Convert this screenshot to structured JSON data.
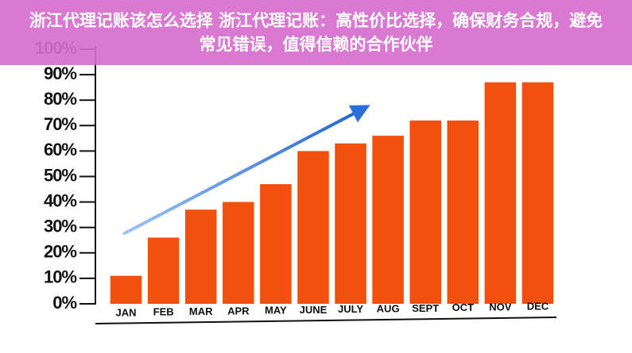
{
  "chart_data": {
    "type": "bar",
    "title": "浙江代理记账该怎么选择 浙江代理记账：高性价比选择，确保财务合规，避免常见错误，值得信赖的合作伙伴",
    "categories": [
      "JAN",
      "FEB",
      "MAR",
      "APR",
      "MAY",
      "JUNE",
      "JULY",
      "AUG",
      "SEPT",
      "OCT",
      "NOV",
      "DEC"
    ],
    "values": [
      11,
      26,
      37,
      40,
      47,
      60,
      63,
      66,
      72,
      72,
      87,
      87
    ],
    "color": "#f2500f",
    "ylim": [
      0,
      100
    ],
    "yticks": [
      {
        "value": 0,
        "label": "0%"
      },
      {
        "value": 10,
        "label": "10%"
      },
      {
        "value": 20,
        "label": "20%"
      },
      {
        "value": 30,
        "label": "30%"
      },
      {
        "value": 40,
        "label": "40%"
      },
      {
        "value": 50,
        "label": "50%"
      },
      {
        "value": 60,
        "label": "60%"
      },
      {
        "value": 70,
        "label": "70%"
      },
      {
        "value": 80,
        "label": "80%"
      },
      {
        "value": 90,
        "label": "90%"
      },
      {
        "value": 100,
        "label": "100%"
      }
    ],
    "grid": false
  }
}
